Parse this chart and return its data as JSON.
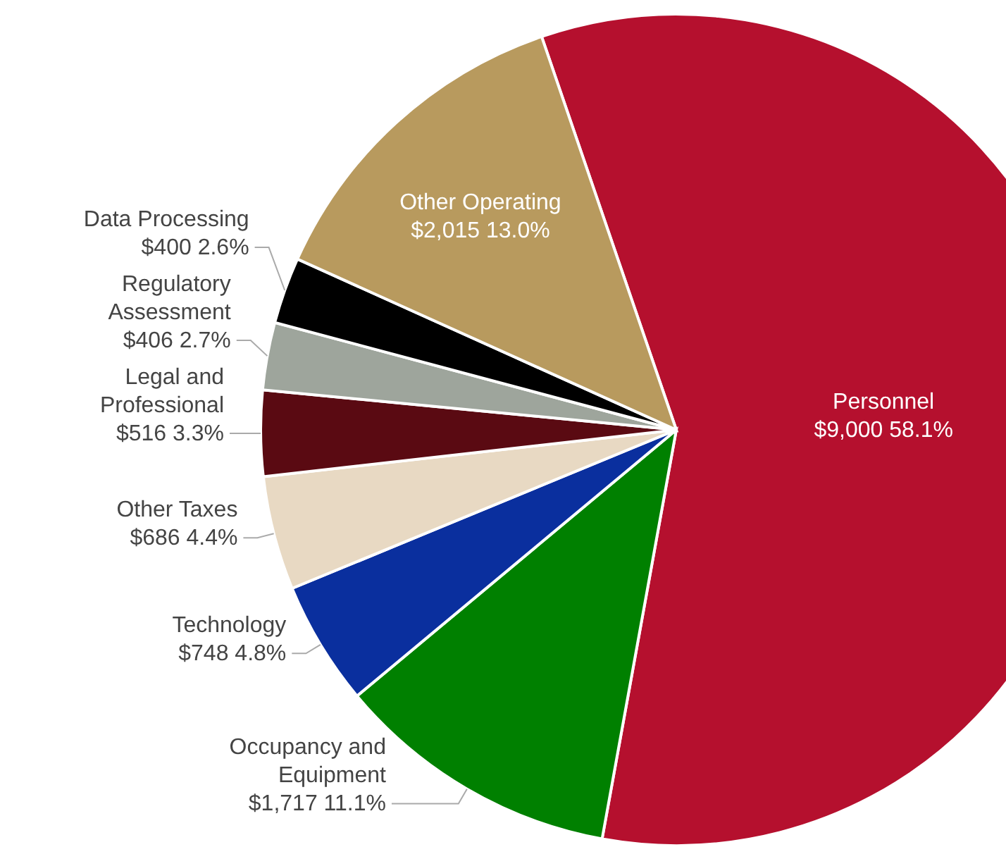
{
  "chart_data": {
    "type": "pie",
    "categories": [
      "Personnel",
      "Occupancy and Equipment",
      "Technology",
      "Other Taxes",
      "Legal and Professional",
      "Regulatory Assessment",
      "Data Processing",
      "Other Operating"
    ],
    "values": [
      9000,
      1717,
      748,
      686,
      516,
      406,
      400,
      2015
    ],
    "colors": [
      "#b5102e",
      "#008000",
      "#0a2f9e",
      "#e8d9c3",
      "#5a0a12",
      "#9ea59c",
      "#000000",
      "#b89a5e"
    ],
    "value_labels": [
      "$9,000  58.1%",
      "$1,717  11.1%",
      "$748  4.8%",
      "$686  4.4%",
      "$516  3.3%",
      "$406  2.7%",
      "$400  2.6%",
      "$2,015  13.0%"
    ]
  }
}
